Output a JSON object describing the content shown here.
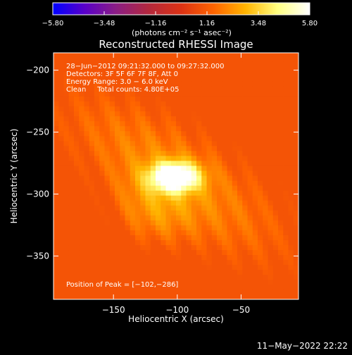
{
  "colorbar": {
    "min": -5.8,
    "max": 5.8,
    "tick_labels": [
      "−5.80",
      "−3.48",
      "−1.16",
      "1.16",
      "3.48",
      "5.80"
    ],
    "units_label": "(photons cm⁻² s⁻¹ asec⁻²)",
    "colors": [
      "#0000ff",
      "#5a00c8",
      "#8c1e82",
      "#b4283c",
      "#dc3214",
      "#ff6400",
      "#ffb400",
      "#ffff82",
      "#ffffff"
    ]
  },
  "chart_data": {
    "type": "heatmap",
    "title": "Reconstructed RHESSI Image",
    "xlabel": "Heliocentric X (arcsec)",
    "ylabel": "Heliocentric Y (arcsec)",
    "xlim": [
      -197,
      -5
    ],
    "ylim": [
      -385,
      -186
    ],
    "x_ticks": [
      -150,
      -100,
      -50
    ],
    "x_tick_labels": [
      "−150",
      "−100",
      "−50"
    ],
    "y_ticks": [
      -200,
      -250,
      -300,
      -350
    ],
    "y_tick_labels": [
      "−200",
      "−250",
      "−300",
      "−350"
    ],
    "peak": [
      -102,
      -286
    ],
    "peak_value": 5.8,
    "annotations": [
      "28−Jun−2012 09:21:32.000 to 09:27:32.000",
      "Detectors: 3F 5F 6F 7F 8F, Att 0",
      "Energy Range: 3.0 − 6.0 keV",
      "Clean     Total counts: 4.80E+05"
    ],
    "peak_annotation": "Position of Peak = [−102,−286]"
  },
  "footer": {
    "timestamp": "11−May−2022 22:22"
  }
}
